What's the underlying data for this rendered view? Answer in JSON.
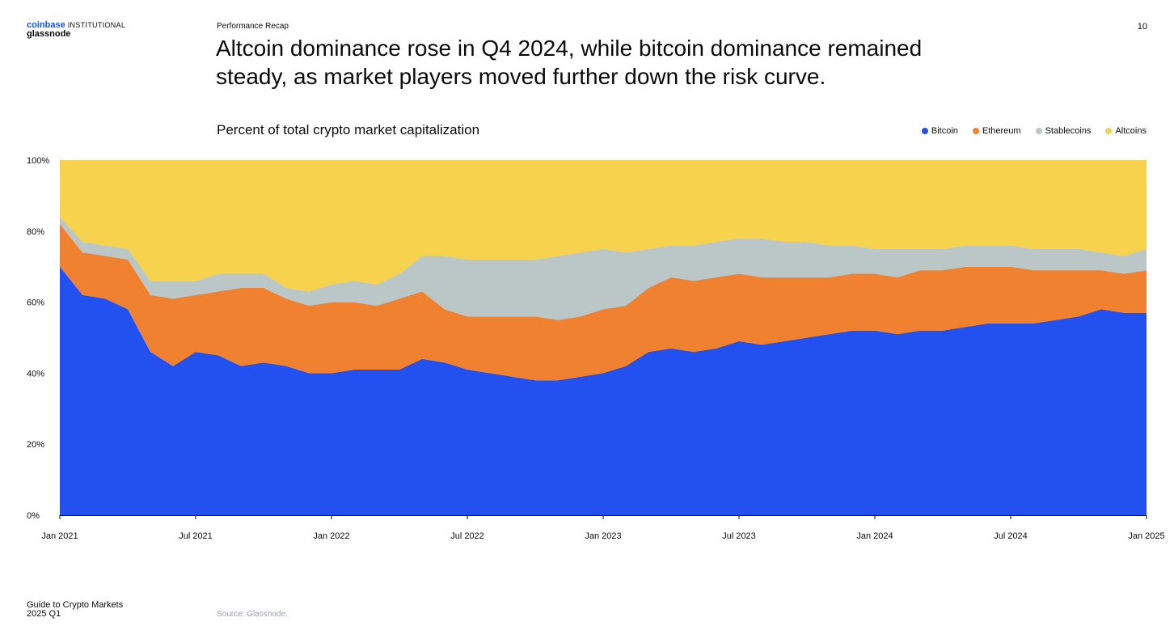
{
  "brand": {
    "primary": "coinbase",
    "secondary": "INSTITUTIONAL",
    "partner": "glassnode"
  },
  "section_label": "Performance Recap",
  "page_number": "10",
  "headline_line1": "Altcoin dominance rose in Q4 2024, while bitcoin dominance remained",
  "headline_line2": "steady, as market players moved further down the risk curve.",
  "footer": {
    "guide_line1": "Guide to Crypto Markets",
    "guide_line2": "2025 Q1",
    "source": "Source: Glassnode."
  },
  "colors": {
    "bitcoin": "#2251f0",
    "ethereum": "#ef8130",
    "stablecoins": "#bac7c6",
    "altcoins": "#f6d24d"
  },
  "chart_data": {
    "type": "area",
    "stacked": true,
    "title": "Percent of total crypto market capitalization",
    "legend_position": "top-right",
    "grid": false,
    "ylim": [
      0,
      100
    ],
    "y_ticks": [
      "0%",
      "20%",
      "40%",
      "60%",
      "80%",
      "100%"
    ],
    "x_range": [
      "2021-01",
      "2025-01"
    ],
    "x_tick_labels": [
      "Jan 2021",
      "Jul 2021",
      "Jan 2022",
      "Jul 2022",
      "Jan 2023",
      "Jul 2023",
      "Jan 2024",
      "Jul 2024",
      "Jan 2025"
    ],
    "x": [
      "2021-01",
      "2021-02",
      "2021-03",
      "2021-04",
      "2021-05",
      "2021-06",
      "2021-07",
      "2021-08",
      "2021-09",
      "2021-10",
      "2021-11",
      "2021-12",
      "2022-01",
      "2022-02",
      "2022-03",
      "2022-04",
      "2022-05",
      "2022-06",
      "2022-07",
      "2022-08",
      "2022-09",
      "2022-10",
      "2022-11",
      "2022-12",
      "2023-01",
      "2023-02",
      "2023-03",
      "2023-04",
      "2023-05",
      "2023-06",
      "2023-07",
      "2023-08",
      "2023-09",
      "2023-10",
      "2023-11",
      "2023-12",
      "2024-01",
      "2024-02",
      "2024-03",
      "2024-04",
      "2024-05",
      "2024-06",
      "2024-07",
      "2024-08",
      "2024-09",
      "2024-10",
      "2024-11",
      "2024-12",
      "2025-01"
    ],
    "series": [
      {
        "name": "Bitcoin",
        "values": [
          70,
          62,
          61,
          58,
          46,
          42,
          46,
          45,
          42,
          43,
          42,
          40,
          40,
          41,
          41,
          41,
          44,
          43,
          41,
          40,
          39,
          38,
          38,
          39,
          40,
          42,
          46,
          47,
          46,
          47,
          49,
          48,
          49,
          50,
          51,
          52,
          52,
          51,
          52,
          52,
          53,
          54,
          54,
          54,
          55,
          56,
          58,
          57,
          57
        ]
      },
      {
        "name": "Ethereum",
        "values": [
          12,
          12,
          12,
          14,
          16,
          19,
          16,
          18,
          22,
          21,
          19,
          19,
          20,
          19,
          18,
          20,
          19,
          15,
          15,
          16,
          17,
          18,
          17,
          17,
          18,
          17,
          18,
          20,
          20,
          20,
          19,
          19,
          18,
          17,
          16,
          16,
          16,
          16,
          17,
          17,
          17,
          16,
          16,
          15,
          14,
          13,
          11,
          11,
          12
        ]
      },
      {
        "name": "Stablecoins",
        "values": [
          2,
          3,
          3,
          3,
          4,
          5,
          4,
          5,
          4,
          4,
          3,
          4,
          5,
          6,
          6,
          7,
          10,
          15,
          16,
          16,
          16,
          16,
          18,
          18,
          17,
          15,
          11,
          9,
          10,
          10,
          10,
          11,
          10,
          10,
          9,
          8,
          7,
          8,
          6,
          6,
          6,
          6,
          6,
          6,
          6,
          6,
          5,
          5,
          6
        ]
      },
      {
        "name": "Altcoins",
        "values": [
          16,
          23,
          24,
          25,
          34,
          34,
          34,
          32,
          32,
          32,
          36,
          37,
          35,
          34,
          35,
          32,
          27,
          27,
          28,
          28,
          28,
          28,
          27,
          26,
          25,
          26,
          25,
          24,
          24,
          23,
          22,
          22,
          23,
          23,
          24,
          24,
          25,
          25,
          25,
          25,
          24,
          24,
          24,
          25,
          25,
          25,
          26,
          27,
          25
        ]
      }
    ]
  }
}
